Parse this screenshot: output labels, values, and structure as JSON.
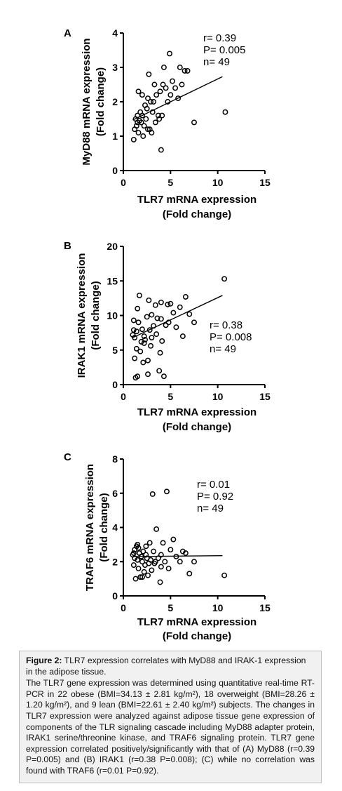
{
  "chart_data": [
    {
      "type": "scatter",
      "panel_label": "A",
      "xlabel": [
        "TLR7 mRNA expression",
        "(Fold change)"
      ],
      "ylabel": [
        "MyD88 mRNA expression",
        "(Fold change)"
      ],
      "xlim": [
        0,
        15
      ],
      "ylim": [
        0,
        4
      ],
      "xticks": [
        0,
        5,
        10,
        15
      ],
      "yticks": [
        0,
        1,
        2,
        3,
        4
      ],
      "stats": [
        "r= 0.39",
        "P= 0.005",
        "n= 49"
      ],
      "stats_position": "top-right",
      "trendline": {
        "x": [
          1.0,
          10.5
        ],
        "y": [
          1.47,
          2.73
        ]
      },
      "points": [
        [
          1.1,
          0.9
        ],
        [
          1.2,
          1.2
        ],
        [
          1.3,
          1.5
        ],
        [
          1.4,
          1.3
        ],
        [
          1.5,
          1.6
        ],
        [
          1.6,
          1.1
        ],
        [
          1.6,
          2.3
        ],
        [
          1.7,
          1.45
        ],
        [
          1.8,
          1.7
        ],
        [
          1.9,
          1.4
        ],
        [
          2.0,
          2.2
        ],
        [
          2.1,
          1.0
        ],
        [
          2.2,
          1.3
        ],
        [
          2.3,
          1.9
        ],
        [
          2.4,
          1.5
        ],
        [
          2.5,
          1.8
        ],
        [
          2.6,
          2.1
        ],
        [
          2.7,
          2.8
        ],
        [
          2.8,
          1.2
        ],
        [
          2.9,
          2.0
        ],
        [
          3.0,
          1.1
        ],
        [
          3.1,
          1.7
        ],
        [
          3.2,
          2.0
        ],
        [
          3.3,
          2.5
        ],
        [
          3.4,
          1.4
        ],
        [
          3.5,
          2.2
        ],
        [
          3.7,
          1.6
        ],
        [
          3.8,
          1.5
        ],
        [
          3.9,
          2.3
        ],
        [
          4.0,
          0.6
        ],
        [
          4.1,
          1.6
        ],
        [
          4.2,
          2.5
        ],
        [
          4.3,
          3.0
        ],
        [
          4.5,
          2.4
        ],
        [
          4.7,
          2.0
        ],
        [
          4.9,
          3.4
        ],
        [
          5.0,
          2.2
        ],
        [
          5.2,
          2.6
        ],
        [
          5.5,
          2.4
        ],
        [
          5.8,
          2.1
        ],
        [
          6.0,
          3.0
        ],
        [
          6.2,
          2.5
        ],
        [
          6.5,
          2.9
        ],
        [
          6.8,
          2.9
        ],
        [
          7.5,
          1.4
        ],
        [
          10.8,
          1.7
        ],
        [
          2.0,
          1.6
        ],
        [
          1.5,
          1.4
        ],
        [
          2.6,
          1.2
        ]
      ]
    },
    {
      "type": "scatter",
      "panel_label": "B",
      "xlabel": [
        "TLR7 mRNA expression",
        "(Fold change)"
      ],
      "ylabel": [
        "IRAK1 mRNA expression",
        "(Fold change)"
      ],
      "xlim": [
        0,
        15
      ],
      "ylim": [
        0,
        20
      ],
      "xticks": [
        0,
        5,
        10,
        15
      ],
      "yticks": [
        0,
        5,
        10,
        15,
        20
      ],
      "stats": [
        "r= 0.38",
        "P= 0.008",
        "n= 49"
      ],
      "stats_position": "right",
      "trendline": {
        "x": [
          1.0,
          10.5
        ],
        "y": [
          6.8,
          12.9
        ]
      },
      "points": [
        [
          1.0,
          7.2
        ],
        [
          1.1,
          9.3
        ],
        [
          1.2,
          6.8
        ],
        [
          1.2,
          3.8
        ],
        [
          1.3,
          1.0
        ],
        [
          1.4,
          5.2
        ],
        [
          1.4,
          7.7
        ],
        [
          1.5,
          11.0
        ],
        [
          1.5,
          1.2
        ],
        [
          1.6,
          9.0
        ],
        [
          1.7,
          12.9
        ],
        [
          1.8,
          4.8
        ],
        [
          1.9,
          6.2
        ],
        [
          2.0,
          8.0
        ],
        [
          2.1,
          3.2
        ],
        [
          2.2,
          7.0
        ],
        [
          2.3,
          6.5
        ],
        [
          2.5,
          9.8
        ],
        [
          2.6,
          3.5
        ],
        [
          2.7,
          12.2
        ],
        [
          2.8,
          7.9
        ],
        [
          2.9,
          5.6
        ],
        [
          3.0,
          6.8
        ],
        [
          3.0,
          10.1
        ],
        [
          3.2,
          8.5
        ],
        [
          3.4,
          11.5
        ],
        [
          3.5,
          7.3
        ],
        [
          3.6,
          9.6
        ],
        [
          3.8,
          2.0
        ],
        [
          3.9,
          4.6
        ],
        [
          4.0,
          11.9
        ],
        [
          4.1,
          6.3
        ],
        [
          4.3,
          1.2
        ],
        [
          4.5,
          8.6
        ],
        [
          4.7,
          11.6
        ],
        [
          4.8,
          9.0
        ],
        [
          5.0,
          11.7
        ],
        [
          5.3,
          10.4
        ],
        [
          5.6,
          8.3
        ],
        [
          6.0,
          11.2
        ],
        [
          6.3,
          7.0
        ],
        [
          6.6,
          12.7
        ],
        [
          7.0,
          10.2
        ],
        [
          7.5,
          9.0
        ],
        [
          10.7,
          15.3
        ],
        [
          2.2,
          6.0
        ],
        [
          2.6,
          1.5
        ],
        [
          4.0,
          9.5
        ],
        [
          1.1,
          7.9
        ]
      ]
    },
    {
      "type": "scatter",
      "panel_label": "C",
      "xlabel": [
        "TLR7 mRNA expression",
        "(Fold change)"
      ],
      "ylabel": [
        "TRAF6 mRNA expression",
        "(Fold change)"
      ],
      "xlim": [
        0,
        15
      ],
      "ylim": [
        0,
        8
      ],
      "xticks": [
        0,
        5,
        10,
        15
      ],
      "yticks": [
        0,
        2,
        4,
        6,
        8
      ],
      "stats": [
        "r= 0.01",
        "P= 0.92",
        "n= 49"
      ],
      "stats_position": "top-right",
      "trendline": {
        "x": [
          1.0,
          10.5
        ],
        "y": [
          2.3,
          2.35
        ]
      },
      "points": [
        [
          1.0,
          2.4
        ],
        [
          1.1,
          1.8
        ],
        [
          1.2,
          2.7
        ],
        [
          1.2,
          2.2
        ],
        [
          1.3,
          1.0
        ],
        [
          1.4,
          2.9
        ],
        [
          1.5,
          3.0
        ],
        [
          1.5,
          2.1
        ],
        [
          1.6,
          1.6
        ],
        [
          1.7,
          2.5
        ],
        [
          1.8,
          1.1
        ],
        [
          1.9,
          2.3
        ],
        [
          2.0,
          2.0
        ],
        [
          2.1,
          2.6
        ],
        [
          2.2,
          1.4
        ],
        [
          2.3,
          1.8
        ],
        [
          2.4,
          2.4
        ],
        [
          2.5,
          2.2
        ],
        [
          2.6,
          1.2
        ],
        [
          2.7,
          1.9
        ],
        [
          2.8,
          3.1
        ],
        [
          2.9,
          2.1
        ],
        [
          3.0,
          1.5
        ],
        [
          3.1,
          5.95
        ],
        [
          3.2,
          2.6
        ],
        [
          3.4,
          2.0
        ],
        [
          3.5,
          3.9
        ],
        [
          3.7,
          2.2
        ],
        [
          3.9,
          0.8
        ],
        [
          4.0,
          2.4
        ],
        [
          4.2,
          3.1
        ],
        [
          4.4,
          2.0
        ],
        [
          4.6,
          6.1
        ],
        [
          4.8,
          1.6
        ],
        [
          5.0,
          2.7
        ],
        [
          5.3,
          3.3
        ],
        [
          5.6,
          2.3
        ],
        [
          6.0,
          2.0
        ],
        [
          6.3,
          2.6
        ],
        [
          6.6,
          2.5
        ],
        [
          7.0,
          1.3
        ],
        [
          7.5,
          2.0
        ],
        [
          10.7,
          1.2
        ],
        [
          1.6,
          2.8
        ],
        [
          2.0,
          1.1
        ],
        [
          3.3,
          1.9
        ],
        [
          1.1,
          2.5
        ],
        [
          2.4,
          2.9
        ],
        [
          4.0,
          1.7
        ]
      ]
    }
  ],
  "caption": {
    "label": "Figure 2:",
    "title": "TLR7 expression correlates with MyD88 and IRAK-1 expression in the adipose tissue.",
    "body": "The TLR7 gene expression was determined using quantitative real-time RT-PCR in 22 obese (BMI=34.13 ± 2.81 kg/m²), 18 overweight (BMI=28.26 ± 1.20 kg/m²), and 9 lean (BMI=22.61 ± 2.40 kg/m²) subjects. The changes in TLR7 expression were analyzed against adipose tissue gene expression of components of the TLR signaling cascade including MyD88 adapter protein, IRAK1 serine/threonine kinase, and TRAF6 signaling protein. TLR7 gene expression correlated positively/significantly with that of (A) MyD88 (r=0.39 P=0.005) and (B) IRAK1 (r=0.38 P=0.008); (C) while no correlation was found with TRAF6 (r=0.01 P=0.92)."
  }
}
